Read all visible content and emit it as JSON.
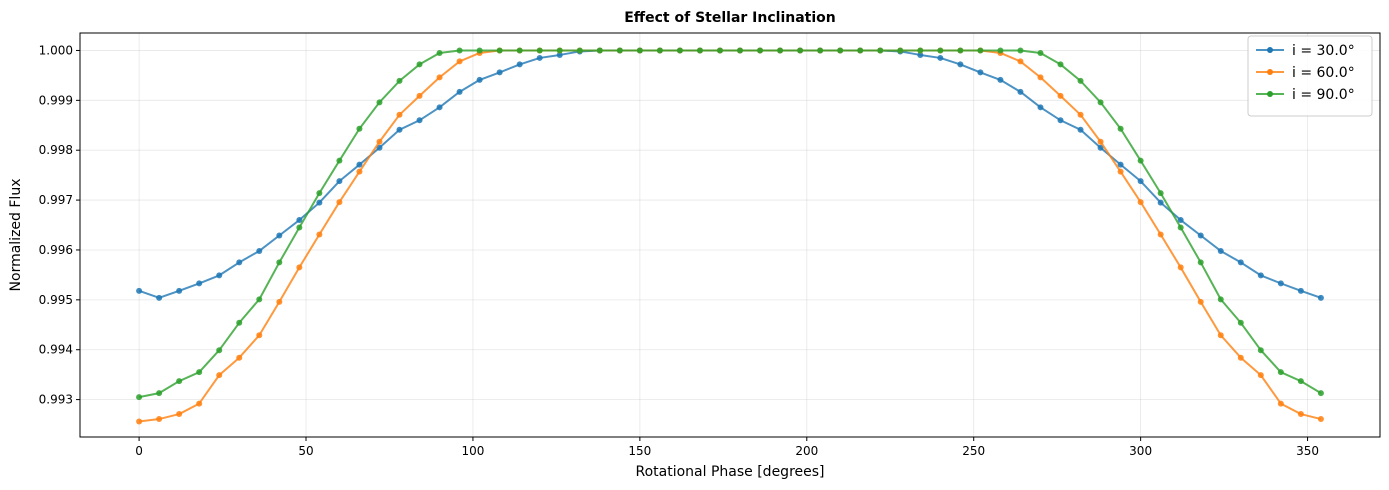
{
  "chart_data": {
    "type": "line",
    "title": "Effect of Stellar Inclination",
    "xlabel": "Rotational Phase [degrees]",
    "ylabel": "Normalized Flux",
    "xlim": [
      -17.7,
      371.7
    ],
    "ylim": [
      0.99225,
      1.00035
    ],
    "xticks": [
      0,
      50,
      100,
      150,
      200,
      250,
      300,
      350
    ],
    "xtick_labels": [
      "0",
      "50",
      "100",
      "150",
      "200",
      "250",
      "300",
      "350"
    ],
    "yticks": [
      0.993,
      0.994,
      0.995,
      0.996,
      0.997,
      0.998,
      0.999,
      1.0
    ],
    "ytick_labels": [
      "0.993",
      "0.994",
      "0.995",
      "0.996",
      "0.997",
      "0.998",
      "0.999",
      "1.000"
    ],
    "grid": true,
    "legend_position": "top-right",
    "x": [
      0,
      6,
      12,
      18,
      24,
      30,
      36,
      42,
      48,
      54,
      60,
      66,
      72,
      78,
      84,
      90,
      96,
      102,
      108,
      114,
      120,
      126,
      132,
      138,
      144,
      150,
      156,
      162,
      168,
      174,
      180,
      186,
      192,
      198,
      204,
      210,
      216,
      222,
      228,
      234,
      240,
      246,
      252,
      258,
      264,
      270,
      276,
      282,
      288,
      294,
      300,
      306,
      312,
      318,
      324,
      330,
      336,
      342,
      348,
      354
    ],
    "series": [
      {
        "name": "i = 30.0°",
        "color": "#1f77b4",
        "values": [
          0.99518,
          0.99504,
          0.99518,
          0.99533,
          0.99549,
          0.99575,
          0.99598,
          0.99629,
          0.9966,
          0.99695,
          0.99738,
          0.99771,
          0.99805,
          0.99841,
          0.9986,
          0.99886,
          0.99917,
          0.99941,
          0.99956,
          0.99972,
          0.99985,
          0.99991,
          0.99998,
          1.0,
          1.0,
          1.0,
          1.0,
          1.0,
          1.0,
          1.0,
          1.0,
          1.0,
          1.0,
          1.0,
          1.0,
          1.0,
          1.0,
          1.0,
          0.99998,
          0.99991,
          0.99985,
          0.99972,
          0.99956,
          0.99941,
          0.99917,
          0.99886,
          0.9986,
          0.99841,
          0.99805,
          0.99771,
          0.99738,
          0.99695,
          0.9966,
          0.99629,
          0.99598,
          0.99575,
          0.99549,
          0.99533,
          0.99518,
          0.99504
        ]
      },
      {
        "name": "i = 60.0°",
        "color": "#ff7f0e",
        "values": [
          0.99256,
          0.99261,
          0.99271,
          0.99292,
          0.99349,
          0.99384,
          0.99429,
          0.99496,
          0.99565,
          0.99631,
          0.99696,
          0.99757,
          0.99817,
          0.99871,
          0.99909,
          0.99946,
          0.99978,
          0.99995,
          1.0,
          1.0,
          1.0,
          1.0,
          1.0,
          1.0,
          1.0,
          1.0,
          1.0,
          1.0,
          1.0,
          1.0,
          1.0,
          1.0,
          1.0,
          1.0,
          1.0,
          1.0,
          1.0,
          1.0,
          1.0,
          1.0,
          1.0,
          1.0,
          1.0,
          0.99995,
          0.99978,
          0.99946,
          0.99909,
          0.99871,
          0.99817,
          0.99757,
          0.99696,
          0.99631,
          0.99565,
          0.99496,
          0.99429,
          0.99384,
          0.99349,
          0.99292,
          0.99271,
          0.99261
        ]
      },
      {
        "name": "i = 90.0°",
        "color": "#2ca02c",
        "values": [
          0.99305,
          0.99313,
          0.99337,
          0.99355,
          0.99399,
          0.99454,
          0.99501,
          0.99575,
          0.99645,
          0.99714,
          0.99779,
          0.99843,
          0.99896,
          0.99939,
          0.99972,
          0.99995,
          1.0,
          1.0,
          1.0,
          1.0,
          1.0,
          1.0,
          1.0,
          1.0,
          1.0,
          1.0,
          1.0,
          1.0,
          1.0,
          1.0,
          1.0,
          1.0,
          1.0,
          1.0,
          1.0,
          1.0,
          1.0,
          1.0,
          1.0,
          1.0,
          1.0,
          1.0,
          1.0,
          1.0,
          1.0,
          0.99995,
          0.99972,
          0.99939,
          0.99896,
          0.99843,
          0.99779,
          0.99714,
          0.99645,
          0.99575,
          0.99501,
          0.99454,
          0.99399,
          0.99355,
          0.99337,
          0.99313
        ]
      }
    ]
  }
}
